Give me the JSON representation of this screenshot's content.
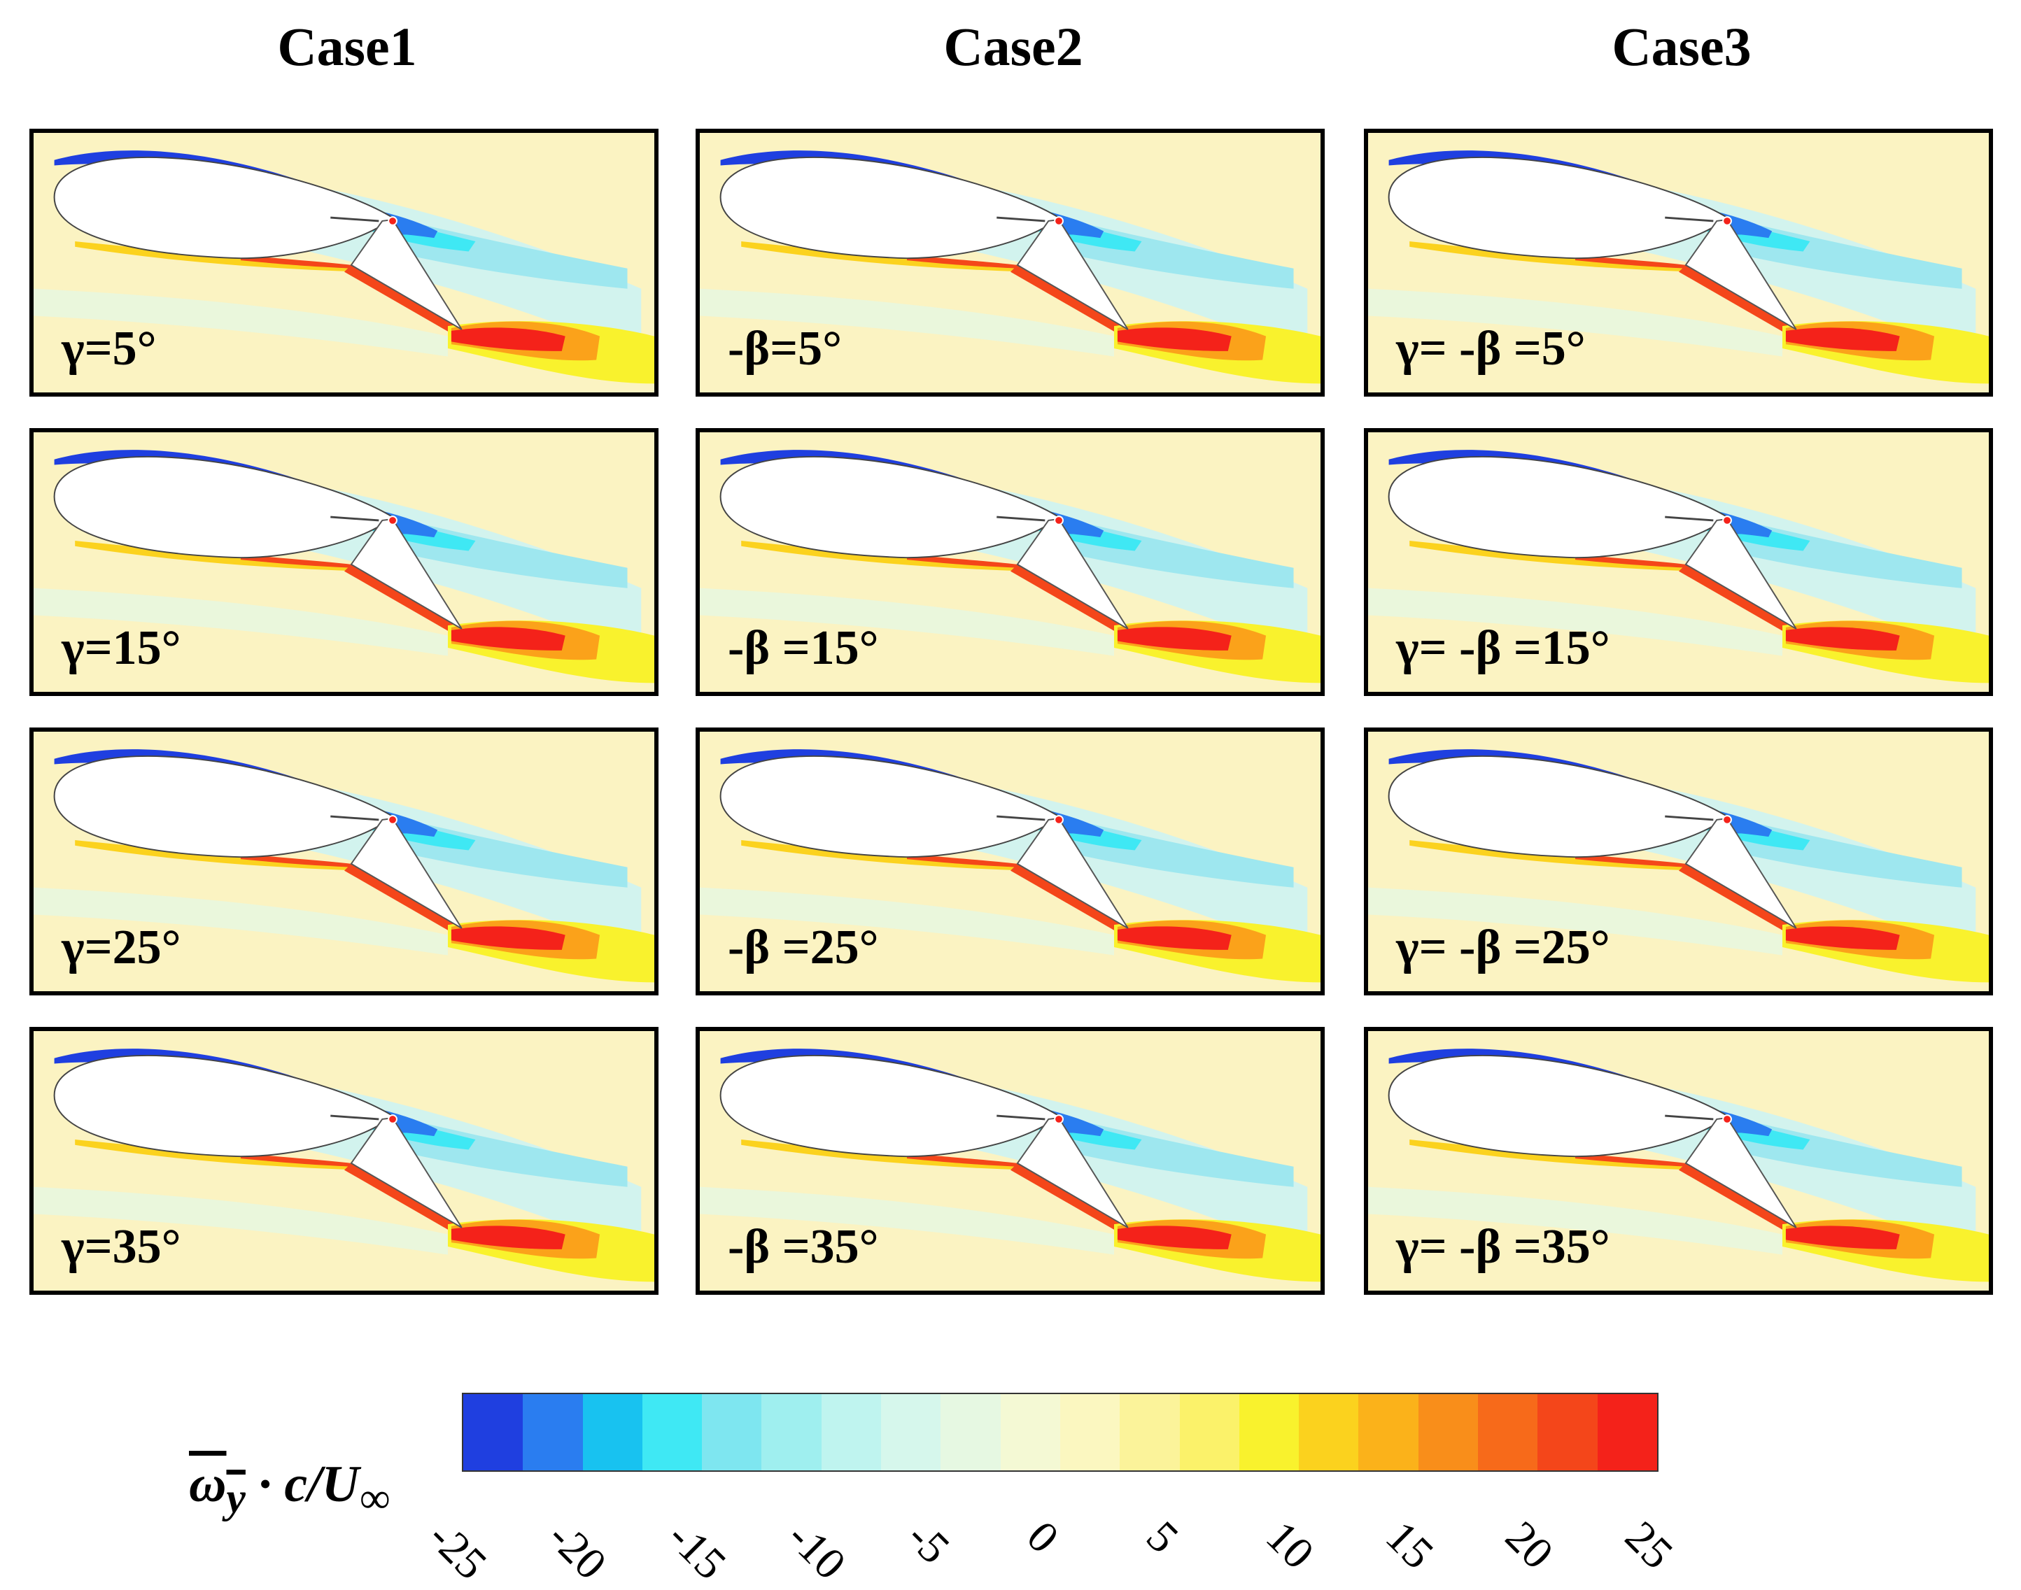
{
  "columns": [
    {
      "title": "Case1",
      "labels": [
        "γ=5°",
        "γ=15°",
        "γ=25°",
        "γ=35°"
      ]
    },
    {
      "title": "Case2",
      "labels": [
        "-β=5°",
        "-β =15°",
        "-β =25°",
        "-β =35°"
      ]
    },
    {
      "title": "Case3",
      "labels": [
        "γ= -β =5°",
        "γ= -β =15°",
        "γ= -β =25°",
        "γ= -β =35°"
      ]
    }
  ],
  "colorbar": {
    "label_main": "ω",
    "label_sub": "y",
    "label_rest": " · c/U",
    "label_inf": "∞",
    "ticks": [
      "-25",
      "-20",
      "-15",
      "-10",
      "-5",
      "0",
      "5",
      "10",
      "15",
      "20",
      "25"
    ],
    "colors": [
      "#1f3fe0",
      "#2a7df0",
      "#18c2f0",
      "#3fe8f4",
      "#7ee6f0",
      "#9fefef",
      "#bff4ef",
      "#d6f7ec",
      "#e6f8e2",
      "#f4f9d4",
      "#fbf7c0",
      "#fbf39a",
      "#fbf26a",
      "#f9f22d",
      "#fbd21e",
      "#fbb21a",
      "#f98e1a",
      "#f76a1a",
      "#f4461a",
      "#f4221a"
    ]
  },
  "colors": {
    "background": "#fbf3c2",
    "light_cyan": "#d2f3ee",
    "cyan": "#9ee7ef",
    "blue": "#1f3fe0",
    "red": "#f4221a",
    "orange": "#fba21a",
    "yellow": "#f9f22d"
  }
}
